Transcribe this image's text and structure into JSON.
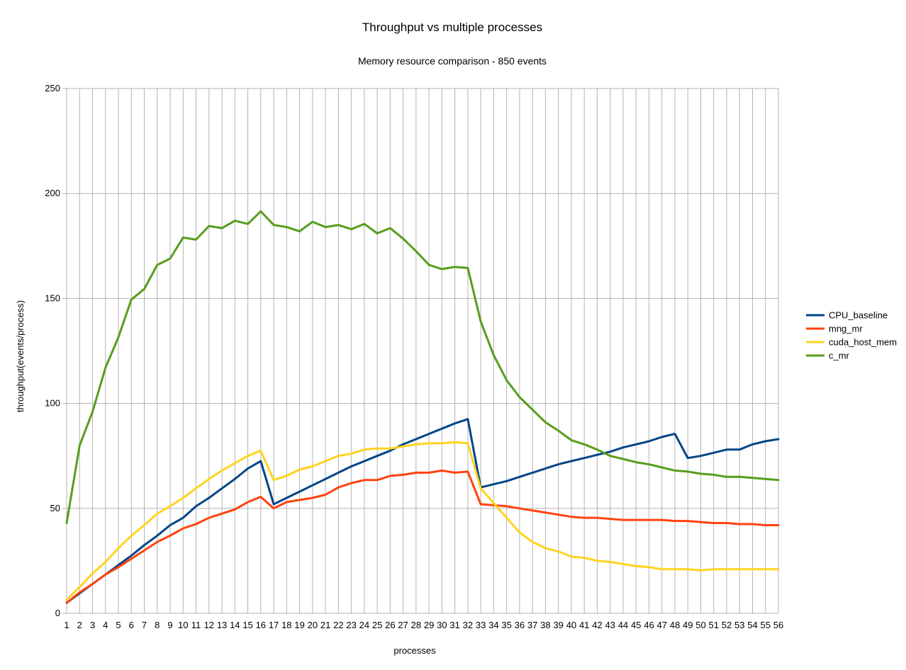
{
  "chart_data": {
    "type": "line",
    "title": "Throughput vs multiple processes",
    "subtitle": "Memory resource comparison - 850 events",
    "xlabel": "processes",
    "ylabel": "throughput(events/process)",
    "ylim": [
      0,
      250
    ],
    "yticks": [
      0,
      50,
      100,
      150,
      200,
      250
    ],
    "grid": true,
    "legend_position": "right",
    "categories": [
      "1",
      "2",
      "3",
      "4",
      "5",
      "6",
      "7",
      "8",
      "9",
      "10",
      "11",
      "12",
      "13",
      "14",
      "15",
      "16",
      "17",
      "18",
      "19",
      "20",
      "21",
      "22",
      "23",
      "24",
      "25",
      "26",
      "27",
      "28",
      "29",
      "30",
      "31",
      "32",
      "33",
      "34",
      "35",
      "36",
      "37",
      "38",
      "39",
      "40",
      "41",
      "42",
      "43",
      "44",
      "45",
      "46",
      "47",
      "48",
      "49",
      "50",
      "51",
      "52",
      "53",
      "54",
      "55",
      "56"
    ],
    "series": [
      {
        "name": "CPU_baseline",
        "color": "#004586",
        "values": [
          5,
          9.5,
          14,
          18.5,
          23,
          27.5,
          32.5,
          37,
          42,
          45.5,
          51,
          55,
          59.5,
          64,
          69,
          72.5,
          52,
          55,
          58,
          61,
          64,
          67,
          70,
          72.5,
          75,
          77.5,
          80.5,
          83,
          85.5,
          88,
          90.5,
          92.5,
          60,
          61.5,
          63,
          65,
          67,
          69,
          71,
          72.5,
          74,
          75.5,
          77,
          79,
          80.5,
          82,
          84,
          85.5,
          74,
          75,
          76.5,
          78,
          78,
          80.5,
          82,
          83
        ]
      },
      {
        "name": "mng_mr",
        "color": "#ff420e",
        "values": [
          5,
          10,
          14,
          18.5,
          22,
          26,
          30,
          34,
          37,
          40.5,
          42.5,
          45.5,
          47.5,
          49.5,
          53,
          55.5,
          50,
          53,
          54,
          55,
          56.5,
          60,
          62,
          63.5,
          63.5,
          65.5,
          66,
          67,
          67,
          68,
          67,
          67.5,
          52,
          51.5,
          51,
          50,
          49,
          48,
          47,
          46,
          45.5,
          45.5,
          45,
          44.5,
          44.5,
          44.5,
          44.5,
          44,
          44,
          43.5,
          43,
          43,
          42.5,
          42.5,
          42,
          42
        ]
      },
      {
        "name": "cuda_host_mem",
        "color": "#ffd320",
        "values": [
          6.5,
          12.5,
          19,
          24.5,
          31,
          37,
          42,
          47.5,
          51,
          55,
          59.5,
          64,
          68,
          71.5,
          75,
          77.5,
          63.5,
          65.5,
          68.5,
          70,
          72.5,
          75,
          76,
          78,
          78.5,
          78.5,
          79.5,
          80.5,
          81,
          81,
          81.5,
          81,
          59.5,
          52.5,
          45.5,
          38.5,
          34,
          31,
          29.5,
          27,
          26.5,
          25,
          24.5,
          23.5,
          22.5,
          22,
          21,
          21,
          21,
          20.5,
          21,
          21,
          21,
          21,
          21,
          21
        ]
      },
      {
        "name": "c_mr",
        "color": "#579d1c",
        "values": [
          43,
          80,
          96,
          117,
          131.5,
          149.5,
          154.5,
          166,
          169,
          179,
          178,
          184.5,
          183.5,
          187,
          185.5,
          191.5,
          185,
          184,
          182,
          186.5,
          184,
          185,
          183,
          185.5,
          181,
          183.5,
          178.5,
          172.5,
          166,
          164,
          165,
          164.5,
          139,
          123,
          111,
          103,
          97,
          91,
          87,
          82.5,
          80.5,
          78,
          75,
          73.5,
          72,
          71,
          69.5,
          68,
          67.5,
          66.5,
          66,
          65,
          65,
          64.5,
          64,
          63.5
        ]
      }
    ]
  }
}
